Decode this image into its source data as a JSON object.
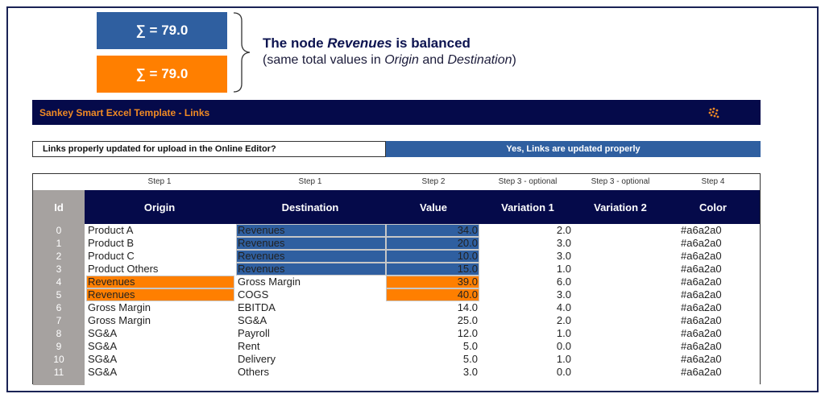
{
  "sums": {
    "blue_label": "∑ = 79.0",
    "orange_label": "∑ = 79.0"
  },
  "note": {
    "title_prefix": "The node ",
    "title_node": "Revenues",
    "title_suffix": " is balanced",
    "sub_open": "(same total values in ",
    "sub_origin": "Origin",
    "sub_and": " and ",
    "sub_destination": "Destination",
    "sub_close": ")"
  },
  "banner": {
    "title": "Sankey Smart Excel Template - Links",
    "logo_icon": "dots-logo-icon"
  },
  "status": {
    "label": "Links properly updated for upload in the Online Editor?",
    "value": "Yes, Links are updated properly"
  },
  "table": {
    "steps": [
      "Step 1",
      "Step 1",
      "Step 2",
      "Step 3 - optional",
      "Step 3 - optional",
      "Step 4"
    ],
    "headers": [
      "Id",
      "Origin",
      "Destination",
      "Value",
      "Variation 1",
      "Variation 2",
      "Color"
    ],
    "rows": [
      {
        "id": "0",
        "origin": "Product A",
        "destination": "Revenues",
        "value": "34.0",
        "variation1": "2.0",
        "color": "#a6a2a0"
      },
      {
        "id": "1",
        "origin": "Product B",
        "destination": "Revenues",
        "value": "20.0",
        "variation1": "3.0",
        "color": "#a6a2a0"
      },
      {
        "id": "2",
        "origin": "Product C",
        "destination": "Revenues",
        "value": "10.0",
        "variation1": "3.0",
        "color": "#a6a2a0"
      },
      {
        "id": "3",
        "origin": "Product Others",
        "destination": "Revenues",
        "value": "15.0",
        "variation1": "1.0",
        "color": "#a6a2a0"
      },
      {
        "id": "4",
        "origin": "Revenues",
        "destination": "Gross Margin",
        "value": "39.0",
        "variation1": "6.0",
        "color": "#a6a2a0"
      },
      {
        "id": "5",
        "origin": "Revenues",
        "destination": "COGS",
        "value": "40.0",
        "variation1": "3.0",
        "color": "#a6a2a0"
      },
      {
        "id": "6",
        "origin": "Gross Margin",
        "destination": "EBITDA",
        "value": "14.0",
        "variation1": "4.0",
        "color": "#a6a2a0"
      },
      {
        "id": "7",
        "origin": "Gross Margin",
        "destination": "SG&A",
        "value": "25.0",
        "variation1": "2.0",
        "color": "#a6a2a0"
      },
      {
        "id": "8",
        "origin": "SG&A",
        "destination": "Payroll",
        "value": "12.0",
        "variation1": "1.0",
        "color": "#a6a2a0"
      },
      {
        "id": "9",
        "origin": "SG&A",
        "destination": "Rent",
        "value": "5.0",
        "variation1": "0.0",
        "color": "#a6a2a0"
      },
      {
        "id": "10",
        "origin": "SG&A",
        "destination": "Delivery",
        "value": "5.0",
        "variation1": "1.0",
        "color": "#a6a2a0"
      },
      {
        "id": "11",
        "origin": "SG&A",
        "destination": "Others",
        "value": "3.0",
        "variation1": "0.0",
        "color": "#a6a2a0"
      }
    ]
  },
  "colors": {
    "navy": "#050a4a",
    "blue": "#2f5fa0",
    "orange": "#ff7f00",
    "grey": "#a6a2a0"
  }
}
